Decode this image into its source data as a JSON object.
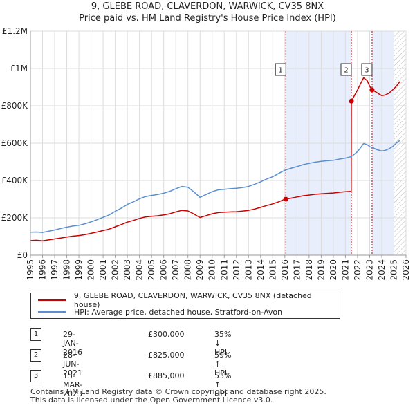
{
  "header": {
    "title": "9, GLEBE ROAD, CLAVERDON, WARWICK, CV35 8NX",
    "subtitle": "Price paid vs. HM Land Registry's House Price Index (HPI)"
  },
  "colors": {
    "property": "#cc0000",
    "hpi": "#5b8fd0",
    "shade": "#e8eefb",
    "grid": "#dddddd"
  },
  "chart_data": {
    "type": "line",
    "xlim": [
      1995,
      2026
    ],
    "ylim": [
      0,
      1200000
    ],
    "x_ticks": [
      1995,
      1996,
      1997,
      1998,
      1999,
      2000,
      2001,
      2002,
      2003,
      2004,
      2005,
      2006,
      2007,
      2008,
      2009,
      2010,
      2011,
      2012,
      2013,
      2014,
      2015,
      2016,
      2017,
      2018,
      2019,
      2020,
      2021,
      2022,
      2023,
      2024,
      2025,
      2026
    ],
    "y_ticks": [
      {
        "value": 0,
        "label": "£0"
      },
      {
        "value": 200000,
        "label": "£200K"
      },
      {
        "value": 400000,
        "label": "£400K"
      },
      {
        "value": 600000,
        "label": "£600K"
      },
      {
        "value": 800000,
        "label": "£800K"
      },
      {
        "value": 1000000,
        "label": "£1M"
      },
      {
        "value": 1200000,
        "label": "£1.2M"
      }
    ],
    "grid": true,
    "shaded_ranges": [
      [
        2016.08,
        2021.49
      ],
      [
        2023.2,
        2025.0
      ]
    ],
    "hatched_range": [
      2025.0,
      2026
    ],
    "series": [
      {
        "name": "9, GLEBE ROAD, CLAVERDON, WARWICK, CV35 8NX (detached house)",
        "key": "property",
        "points": [
          [
            1995,
            78000
          ],
          [
            1995.5,
            80000
          ],
          [
            1996,
            77000
          ],
          [
            1996.5,
            82000
          ],
          [
            1997,
            87000
          ],
          [
            1997.5,
            92000
          ],
          [
            1998,
            97000
          ],
          [
            1998.5,
            102000
          ],
          [
            1999,
            105000
          ],
          [
            1999.5,
            110000
          ],
          [
            2000,
            117000
          ],
          [
            2000.5,
            124000
          ],
          [
            2001,
            132000
          ],
          [
            2001.5,
            140000
          ],
          [
            2002,
            152000
          ],
          [
            2002.5,
            164000
          ],
          [
            2003,
            177000
          ],
          [
            2003.5,
            186000
          ],
          [
            2004,
            197000
          ],
          [
            2004.5,
            205000
          ],
          [
            2005,
            208000
          ],
          [
            2005.5,
            211000
          ],
          [
            2006,
            216000
          ],
          [
            2006.5,
            222000
          ],
          [
            2007,
            232000
          ],
          [
            2007.5,
            240000
          ],
          [
            2008,
            237000
          ],
          [
            2008.5,
            220000
          ],
          [
            2009,
            202000
          ],
          [
            2009.5,
            212000
          ],
          [
            2010,
            222000
          ],
          [
            2010.5,
            228000
          ],
          [
            2011,
            230000
          ],
          [
            2011.5,
            232000
          ],
          [
            2012,
            233000
          ],
          [
            2012.5,
            236000
          ],
          [
            2013,
            240000
          ],
          [
            2013.5,
            247000
          ],
          [
            2014,
            256000
          ],
          [
            2014.5,
            266000
          ],
          [
            2015,
            275000
          ],
          [
            2015.5,
            286000
          ],
          [
            2016,
            300000
          ],
          [
            2016.08,
            300000
          ],
          [
            2016.5,
            305000
          ],
          [
            2017,
            312000
          ],
          [
            2017.5,
            318000
          ],
          [
            2018,
            322000
          ],
          [
            2018.5,
            326000
          ],
          [
            2019,
            329000
          ],
          [
            2019.5,
            331000
          ],
          [
            2020,
            333000
          ],
          [
            2020.5,
            337000
          ],
          [
            2021,
            340000
          ],
          [
            2021.48,
            342000
          ],
          [
            2021.49,
            825000
          ],
          [
            2021.7,
            850000
          ],
          [
            2022,
            885000
          ],
          [
            2022.3,
            925000
          ],
          [
            2022.5,
            950000
          ],
          [
            2022.8,
            935000
          ],
          [
            2023,
            905000
          ],
          [
            2023.2,
            885000
          ],
          [
            2023.5,
            875000
          ],
          [
            2023.8,
            862000
          ],
          [
            2024,
            855000
          ],
          [
            2024.3,
            858000
          ],
          [
            2024.6,
            868000
          ],
          [
            2024.9,
            885000
          ],
          [
            2025.2,
            905000
          ],
          [
            2025.5,
            930000
          ]
        ]
      },
      {
        "name": "HPI: Average price, detached house, Stratford-on-Avon",
        "key": "hpi",
        "points": [
          [
            1995,
            123000
          ],
          [
            1995.5,
            124000
          ],
          [
            1996,
            122000
          ],
          [
            1996.5,
            128000
          ],
          [
            1997,
            135000
          ],
          [
            1997.5,
            143000
          ],
          [
            1998,
            150000
          ],
          [
            1998.5,
            156000
          ],
          [
            1999,
            160000
          ],
          [
            1999.5,
            168000
          ],
          [
            2000,
            178000
          ],
          [
            2000.5,
            190000
          ],
          [
            2001,
            203000
          ],
          [
            2001.5,
            216000
          ],
          [
            2002,
            235000
          ],
          [
            2002.5,
            252000
          ],
          [
            2003,
            272000
          ],
          [
            2003.5,
            286000
          ],
          [
            2004,
            302000
          ],
          [
            2004.5,
            314000
          ],
          [
            2005,
            320000
          ],
          [
            2005.5,
            325000
          ],
          [
            2006,
            332000
          ],
          [
            2006.5,
            342000
          ],
          [
            2007,
            356000
          ],
          [
            2007.5,
            368000
          ],
          [
            2008,
            364000
          ],
          [
            2008.5,
            338000
          ],
          [
            2009,
            310000
          ],
          [
            2009.5,
            325000
          ],
          [
            2010,
            340000
          ],
          [
            2010.5,
            350000
          ],
          [
            2011,
            353000
          ],
          [
            2011.5,
            356000
          ],
          [
            2012,
            358000
          ],
          [
            2012.5,
            362000
          ],
          [
            2013,
            368000
          ],
          [
            2013.5,
            380000
          ],
          [
            2014,
            393000
          ],
          [
            2014.5,
            408000
          ],
          [
            2015,
            420000
          ],
          [
            2015.5,
            438000
          ],
          [
            2016,
            455000
          ],
          [
            2016.5,
            465000
          ],
          [
            2017,
            475000
          ],
          [
            2017.5,
            485000
          ],
          [
            2018,
            492000
          ],
          [
            2018.5,
            498000
          ],
          [
            2019,
            503000
          ],
          [
            2019.5,
            506000
          ],
          [
            2020,
            508000
          ],
          [
            2020.5,
            515000
          ],
          [
            2021,
            520000
          ],
          [
            2021.5,
            528000
          ],
          [
            2022,
            555000
          ],
          [
            2022.3,
            580000
          ],
          [
            2022.5,
            598000
          ],
          [
            2022.8,
            592000
          ],
          [
            2023,
            582000
          ],
          [
            2023.3,
            575000
          ],
          [
            2023.6,
            565000
          ],
          [
            2024,
            558000
          ],
          [
            2024.3,
            562000
          ],
          [
            2024.6,
            570000
          ],
          [
            2024.9,
            582000
          ],
          [
            2025.2,
            600000
          ],
          [
            2025.5,
            615000
          ]
        ]
      }
    ],
    "transactions": [
      {
        "num": "1",
        "date": "29-JAN-2016",
        "price": "£300,000",
        "hpi": "35% ↓ HPI",
        "x": 2016.08,
        "y": 300000
      },
      {
        "num": "2",
        "date": "28-JUN-2021",
        "price": "£825,000",
        "hpi": "59% ↑ HPI",
        "x": 2021.49,
        "y": 825000
      },
      {
        "num": "3",
        "date": "15-MAR-2023",
        "price": "£885,000",
        "hpi": "53% ↑ HPI",
        "x": 2023.2,
        "y": 885000
      }
    ]
  },
  "footer": {
    "line1": "Contains HM Land Registry data © Crown copyright and database right 2025.",
    "line2": "This data is licensed under the Open Government Licence v3.0."
  }
}
